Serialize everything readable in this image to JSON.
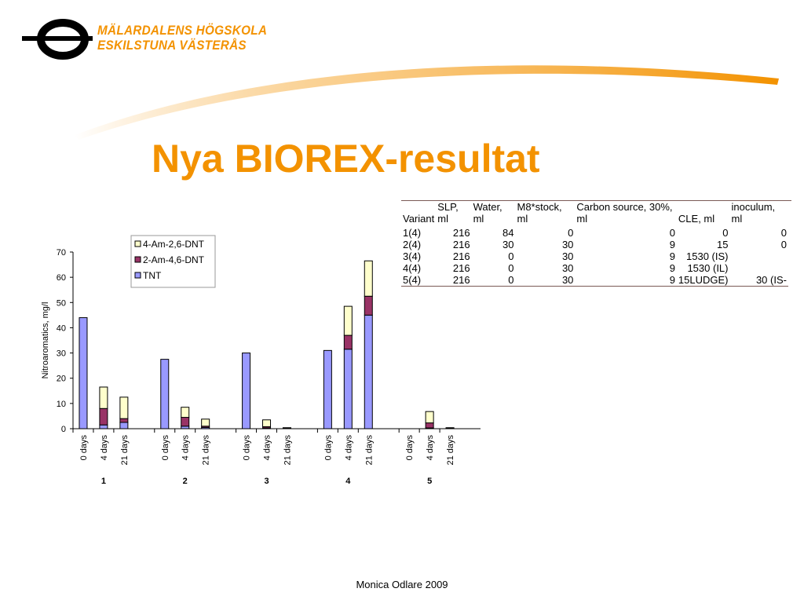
{
  "slide": {
    "title": "Nya BIOREX-resultat",
    "footer": "Monica Odlare 2009",
    "logo_line1": "MÄLARDALENS HÖGSKOLA",
    "logo_line2": "ESKILSTUNA VÄSTERÅS",
    "accent_color": "#f39200"
  },
  "table": {
    "headers": [
      "Variant",
      "SLP, ml",
      "Water, ml",
      "M8*stock, ml",
      "Carbon source, 30%, ml",
      "CLE, ml",
      "inoculum, ml",
      ""
    ],
    "rows": [
      [
        "1(4)",
        "216",
        "84",
        "0",
        "0",
        "0",
        "0"
      ],
      [
        "2(4)",
        "216",
        "30",
        "30",
        "9",
        "15",
        "0"
      ],
      [
        "3(4)",
        "216",
        "0",
        "30",
        "9",
        "1530 (IS)",
        ""
      ],
      [
        "4(4)",
        "216",
        "0",
        "30",
        "9",
        "1530 (IL)",
        ""
      ],
      [
        "5(4)",
        "216",
        "0",
        "30",
        "9",
        "15LUDGE)",
        "30 (IS-"
      ]
    ]
  },
  "chart_data": {
    "type": "bar",
    "stacked": true,
    "groups": [
      "1",
      "2",
      "3",
      "4",
      "5"
    ],
    "categories": [
      "0 days",
      "4 days",
      "21 days"
    ],
    "ylabel": "Nitroaromatics, mg/l",
    "ylim": [
      0,
      70
    ],
    "yticks": [
      0,
      10,
      20,
      30,
      40,
      50,
      60,
      70
    ],
    "legend_position": "top",
    "series": [
      {
        "name": "TNT",
        "color": "#9999ff",
        "values": [
          [
            44,
            1.5,
            2.5
          ],
          [
            27.5,
            1,
            0.5
          ],
          [
            30,
            0.3,
            0.2
          ],
          [
            31,
            31.5,
            45
          ],
          [
            0,
            0.3,
            0.2
          ]
        ]
      },
      {
        "name": "2-Am-4,6-DNT",
        "color": "#993366",
        "values": [
          [
            0,
            6.5,
            1.5
          ],
          [
            0,
            3.5,
            0.5
          ],
          [
            0,
            0.5,
            0.2
          ],
          [
            0,
            5.5,
            7.5
          ],
          [
            0,
            2,
            0.2
          ]
        ]
      },
      {
        "name": "4-Am-2,6-DNT",
        "color": "#ffffcc",
        "values": [
          [
            0,
            8.5,
            8.5
          ],
          [
            0,
            4,
            2.8
          ],
          [
            0,
            2.7,
            0
          ],
          [
            0,
            11.5,
            14
          ],
          [
            0,
            4.5,
            0
          ]
        ]
      }
    ]
  }
}
